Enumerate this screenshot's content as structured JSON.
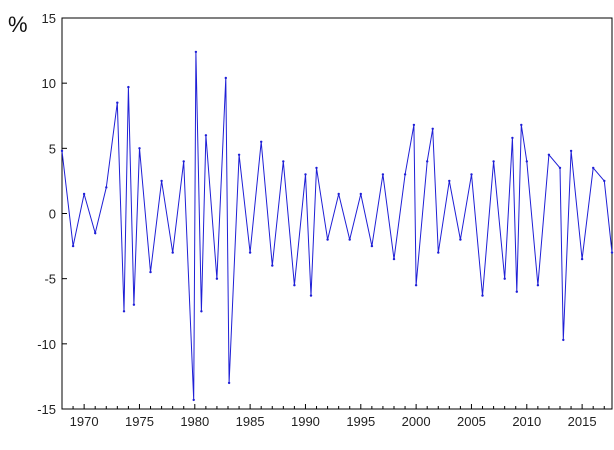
{
  "chart_data": {
    "type": "line",
    "title": "",
    "xlabel": "",
    "ylabel": "%",
    "xlim": [
      1968.0,
      2017.7
    ],
    "ylim": [
      -15,
      15
    ],
    "x_ticks": [
      1970,
      1975,
      1980,
      1985,
      1990,
      1995,
      2000,
      2005,
      2010,
      2015
    ],
    "y_ticks": [
      15,
      10,
      5,
      0,
      -5,
      -10,
      -15
    ],
    "grid": false,
    "legend": "none",
    "series": [
      {
        "color": "#1f1fd6",
        "x": [
          1968.0,
          1969.0,
          1970.0,
          1971.0,
          1972.0,
          1973.0,
          1973.6,
          1974.0,
          1974.5,
          1975.0,
          1976.0,
          1977.0,
          1978.0,
          1979.0,
          1979.9,
          1980.1,
          1980.6,
          1981.0,
          1982.0,
          1982.8,
          1983.1,
          1984.0,
          1985.0,
          1986.0,
          1987.0,
          1988.0,
          1989.0,
          1990.0,
          1990.5,
          1991.0,
          1992.0,
          1993.0,
          1994.0,
          1995.0,
          1996.0,
          1997.0,
          1998.0,
          1999.0,
          1999.8,
          2000.0,
          2001.0,
          2001.5,
          2002.0,
          2003.0,
          2004.0,
          2005.0,
          2006.0,
          2007.0,
          2008.0,
          2008.7,
          2009.1,
          2009.5,
          2010.0,
          2011.0,
          2012.0,
          2013.0,
          2013.3,
          2014.0,
          2015.0,
          2016.0,
          2017.0,
          2017.7
        ],
        "y": [
          4.8,
          -2.5,
          1.5,
          -1.5,
          2.0,
          8.5,
          -7.5,
          9.7,
          -7.0,
          5.0,
          -4.5,
          2.5,
          -3.0,
          4.0,
          -14.3,
          12.4,
          -7.5,
          6.0,
          -5.0,
          10.4,
          -13.0,
          4.5,
          -3.0,
          5.5,
          -4.0,
          4.0,
          -5.5,
          3.0,
          -6.3,
          3.5,
          -2.0,
          1.5,
          -2.0,
          1.5,
          -2.5,
          3.0,
          -3.5,
          3.0,
          6.8,
          -5.5,
          4.0,
          6.5,
          -3.0,
          2.5,
          -2.0,
          3.0,
          -6.3,
          4.0,
          -5.0,
          5.8,
          -6.0,
          6.8,
          4.0,
          -5.5,
          4.5,
          3.5,
          -9.7,
          4.8,
          -3.5,
          3.5,
          2.5,
          -3.0
        ]
      }
    ]
  }
}
